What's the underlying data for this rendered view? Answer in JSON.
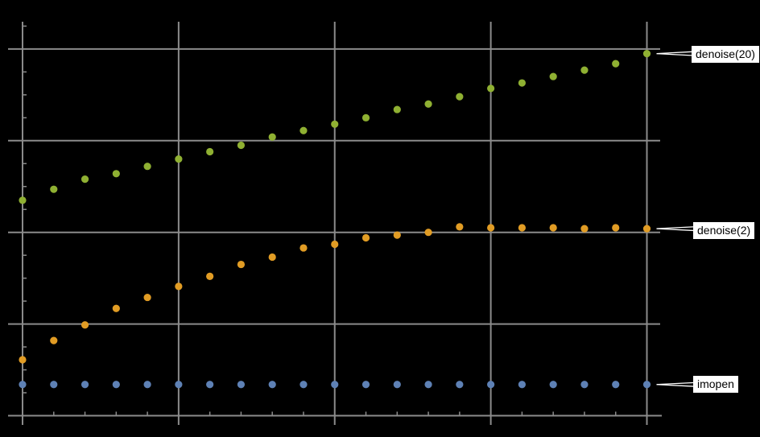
{
  "chart_data": {
    "type": "scatter",
    "x": [
      0,
      1,
      2,
      3,
      4,
      5,
      6,
      7,
      8,
      9,
      10,
      11,
      12,
      13,
      14,
      15,
      16,
      17,
      18,
      19,
      20
    ],
    "series": [
      {
        "name": "imopen",
        "color": "#5E81B5",
        "values": [
          0.34,
          0.34,
          0.34,
          0.34,
          0.34,
          0.34,
          0.34,
          0.34,
          0.34,
          0.34,
          0.34,
          0.34,
          0.34,
          0.34,
          0.34,
          0.34,
          0.34,
          0.34,
          0.34,
          0.34,
          0.34
        ]
      },
      {
        "name": "denoise(2)",
        "color": "#E19C24",
        "values": [
          0.61,
          0.82,
          0.99,
          1.17,
          1.29,
          1.41,
          1.52,
          1.65,
          1.73,
          1.83,
          1.87,
          1.94,
          1.97,
          2.0,
          2.06,
          2.05,
          2.05,
          2.05,
          2.04,
          2.05,
          2.04
        ]
      },
      {
        "name": "denoise(20)",
        "color": "#8FB032",
        "values": [
          2.35,
          2.47,
          2.58,
          2.64,
          2.72,
          2.8,
          2.88,
          2.95,
          3.04,
          3.11,
          3.18,
          3.25,
          3.34,
          3.4,
          3.48,
          3.57,
          3.63,
          3.7,
          3.77,
          3.84,
          3.95
        ]
      }
    ],
    "title": "",
    "xlabel": "",
    "ylabel": "",
    "xlim": [
      0,
      20.5
    ],
    "ylim": [
      0,
      4.25
    ],
    "x_gridlines": [
      5,
      10,
      15,
      20
    ],
    "y_gridlines": [
      1,
      2,
      3,
      4
    ],
    "grid": true,
    "tick_labels_visible": false,
    "legend_position": "right-callouts"
  },
  "callout_labels": {
    "top": "denoise(20)",
    "middle": "denoise(2)",
    "bottom": "imopen"
  },
  "colors": {
    "background": "#000000",
    "grid": "#8B8B8B",
    "axis": "#8B8B8B",
    "callout_background": "#FFFFFF",
    "callout_text": "#000000",
    "callout_leader": "#FFFFFF",
    "series_imopen": "#5E81B5",
    "series_denoise2": "#E19C24",
    "series_denoise20": "#8FB032"
  }
}
